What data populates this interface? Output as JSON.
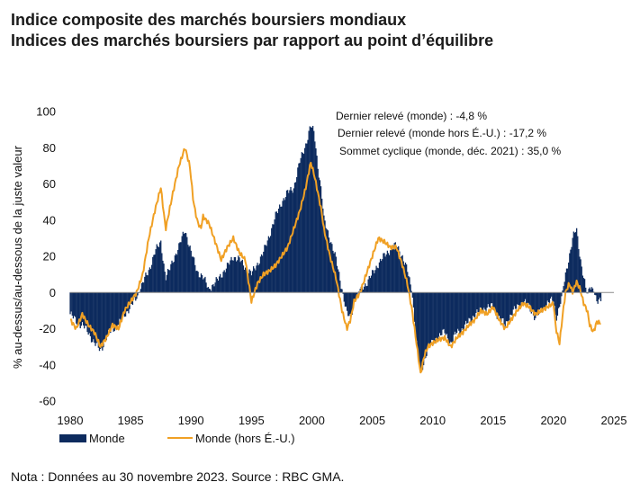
{
  "header": {
    "title_line1": "Indice composite des marchés boursiers mondiaux",
    "title_line2": "Indices des marchés boursiers par rapport au point d’équilibre"
  },
  "footer": {
    "note": "Nota : Données au 30 novembre 2023. Source : RBC GMA."
  },
  "colors": {
    "monde": "#0d2b5e",
    "monde_hors_eu": "#f0a024",
    "zero_line": "#8c8c8c"
  },
  "chart_data": {
    "type": "area",
    "ylabel": "% au-dessus/au-dessous de la juste valeur",
    "xlabel": "",
    "xlim": [
      1980,
      2025
    ],
    "ylim": [
      -60,
      100
    ],
    "x_ticks": [
      "1980",
      "1985",
      "1990",
      "1995",
      "2000",
      "2005",
      "2010",
      "2015",
      "2020",
      "2025"
    ],
    "y_ticks": [
      "100",
      "80",
      "60",
      "40",
      "20",
      "0",
      "-20",
      "-40",
      "-60"
    ],
    "legend_position": "bottom-left",
    "annotations": [
      "Dernier relevé (monde) : -4,8 %",
      "Dernier relevé (monde hors É.-U.) : -17,2 %",
      "Sommet cyclique (monde, déc. 2021) : 35,0 %"
    ],
    "series": [
      {
        "name": "Monde",
        "style": "bar-area",
        "x": [
          1980.0,
          1980.5,
          1981.0,
          1981.5,
          1982.0,
          1982.5,
          1983.0,
          1983.5,
          1984.0,
          1984.5,
          1985.0,
          1985.5,
          1986.0,
          1986.5,
          1987.0,
          1987.5,
          1987.9,
          1988.2,
          1988.5,
          1989.0,
          1989.5,
          1990.0,
          1990.5,
          1991.0,
          1991.5,
          1992.0,
          1992.5,
          1993.0,
          1993.5,
          1994.0,
          1994.5,
          1995.0,
          1995.5,
          1996.0,
          1996.5,
          1997.0,
          1997.5,
          1998.0,
          1998.5,
          1999.0,
          1999.5,
          1999.9,
          2000.2,
          2000.5,
          2000.8,
          2001.0,
          2001.5,
          2002.0,
          2002.5,
          2002.9,
          2003.2,
          2003.5,
          2004.0,
          2004.5,
          2005.0,
          2005.5,
          2006.0,
          2006.5,
          2007.0,
          2007.5,
          2007.9,
          2008.3,
          2008.7,
          2009.0,
          2009.3,
          2009.6,
          2010.0,
          2010.5,
          2011.0,
          2011.5,
          2012.0,
          2012.5,
          2013.0,
          2013.5,
          2014.0,
          2014.5,
          2015.0,
          2015.5,
          2016.0,
          2016.5,
          2017.0,
          2017.5,
          2018.0,
          2018.5,
          2019.0,
          2019.5,
          2020.0,
          2020.2,
          2020.5,
          2020.8,
          2021.0,
          2021.3,
          2021.6,
          2021.9,
          2022.2,
          2022.5,
          2022.8,
          2023.0,
          2023.3,
          2023.6,
          2023.9
        ],
        "values": [
          -12,
          -16,
          -18,
          -22,
          -28,
          -32,
          -25,
          -20,
          -18,
          -12,
          -8,
          -3,
          5,
          12,
          22,
          28,
          8,
          12,
          18,
          25,
          35,
          22,
          12,
          8,
          2,
          5,
          10,
          14,
          20,
          18,
          14,
          10,
          16,
          22,
          32,
          42,
          50,
          55,
          58,
          72,
          82,
          92,
          88,
          70,
          55,
          40,
          30,
          18,
          2,
          -12,
          -14,
          -5,
          2,
          5,
          10,
          16,
          20,
          24,
          26,
          20,
          12,
          0,
          -30,
          -45,
          -38,
          -30,
          -28,
          -24,
          -22,
          -28,
          -22,
          -20,
          -16,
          -12,
          -10,
          -8,
          -8,
          -14,
          -18,
          -12,
          -8,
          -5,
          -8,
          -14,
          -10,
          -6,
          -4,
          -14,
          -8,
          2,
          10,
          20,
          30,
          35,
          20,
          8,
          -2,
          4,
          2,
          -6,
          -4.8
        ]
      },
      {
        "name": "Monde (hors É.-U.)",
        "style": "line",
        "x": [
          1980.0,
          1980.5,
          1981.0,
          1981.5,
          1982.0,
          1982.5,
          1983.0,
          1983.5,
          1984.0,
          1984.5,
          1985.0,
          1985.5,
          1986.0,
          1986.5,
          1987.0,
          1987.5,
          1987.9,
          1988.2,
          1988.5,
          1989.0,
          1989.5,
          1989.9,
          1990.2,
          1990.5,
          1990.8,
          1991.0,
          1991.5,
          1992.0,
          1992.5,
          1993.0,
          1993.5,
          1994.0,
          1994.5,
          1995.0,
          1995.5,
          1996.0,
          1996.5,
          1997.0,
          1997.5,
          1998.0,
          1998.5,
          1999.0,
          1999.5,
          1999.9,
          2000.2,
          2000.5,
          2000.8,
          2001.0,
          2001.5,
          2002.0,
          2002.5,
          2002.9,
          2003.2,
          2003.5,
          2004.0,
          2004.5,
          2005.0,
          2005.5,
          2006.0,
          2006.5,
          2007.0,
          2007.5,
          2007.9,
          2008.3,
          2008.7,
          2009.0,
          2009.3,
          2009.6,
          2010.0,
          2010.5,
          2011.0,
          2011.5,
          2012.0,
          2012.5,
          2013.0,
          2013.5,
          2014.0,
          2014.5,
          2015.0,
          2015.5,
          2016.0,
          2016.5,
          2017.0,
          2017.5,
          2018.0,
          2018.5,
          2019.0,
          2019.5,
          2020.0,
          2020.2,
          2020.5,
          2020.8,
          2021.0,
          2021.3,
          2021.6,
          2021.9,
          2022.2,
          2022.5,
          2022.8,
          2023.0,
          2023.3,
          2023.6,
          2023.9
        ],
        "values": [
          -15,
          -20,
          -12,
          -18,
          -22,
          -30,
          -25,
          -18,
          -20,
          -10,
          -5,
          0,
          10,
          30,
          45,
          58,
          35,
          45,
          55,
          70,
          80,
          70,
          50,
          40,
          35,
          42,
          38,
          28,
          18,
          25,
          30,
          22,
          18,
          -5,
          5,
          10,
          12,
          15,
          20,
          25,
          35,
          45,
          58,
          72,
          65,
          55,
          45,
          35,
          20,
          8,
          -10,
          -20,
          -15,
          -5,
          0,
          10,
          20,
          30,
          28,
          25,
          25,
          15,
          5,
          -10,
          -30,
          -45,
          -35,
          -30,
          -28,
          -26,
          -25,
          -30,
          -25,
          -22,
          -18,
          -15,
          -10,
          -12,
          -8,
          -15,
          -20,
          -15,
          -10,
          -6,
          -8,
          -12,
          -10,
          -8,
          -6,
          -20,
          -28,
          -10,
          0,
          5,
          0,
          6,
          2,
          -6,
          -10,
          -18,
          -22,
          -16,
          -17.2
        ]
      }
    ]
  }
}
